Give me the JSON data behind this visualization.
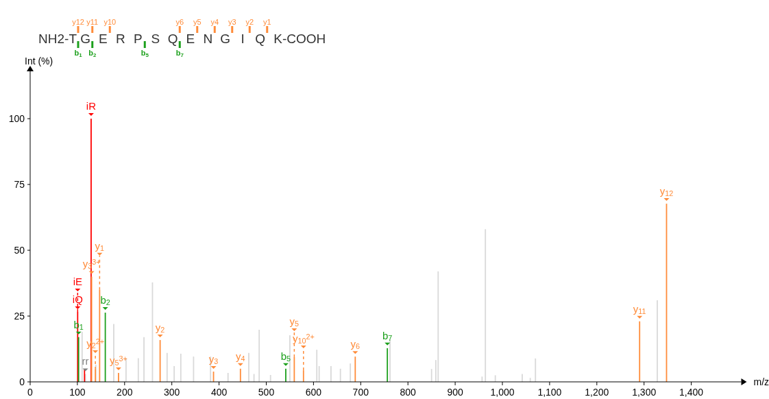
{
  "chart_data": [
    {
      "type": "other",
      "categories": [
        "NH2-T",
        "G",
        "E",
        "R",
        "P",
        "S",
        "Q",
        "E",
        "N",
        "G",
        "I",
        "Q",
        "K-COOH"
      ],
      "annotations": [
        {
          "text": "y12",
          "x": "NH2-T"
        },
        {
          "text": "y11",
          "x": "G"
        },
        {
          "text": "y10",
          "x": "E"
        },
        {
          "text": "y6",
          "x": "Q"
        },
        {
          "text": "y5",
          "x": "E"
        },
        {
          "text": "y4",
          "x": "N"
        },
        {
          "text": "y3",
          "x": "G"
        },
        {
          "text": "y2",
          "x": "I"
        },
        {
          "text": "y1",
          "x": "Q"
        },
        {
          "text": "b$_{1}$",
          "x": "NH2-T"
        },
        {
          "text": "b$_{2}$",
          "x": "G"
        },
        {
          "text": "b$_{5}$",
          "x": "P"
        },
        {
          "text": "b$_{7}$",
          "x": "Q"
        }
      ]
    },
    {
      "type": "bar",
      "xlabel": "m/z",
      "ylabel": "Int (%)",
      "xlim": [
        0,
        1500
      ],
      "ylim": [
        0,
        118
      ],
      "xticks": [
        0,
        100,
        200,
        300,
        400,
        500,
        600,
        700,
        800,
        900,
        {
          "value": 1000,
          "label": "1,000"
        },
        {
          "value": 1100,
          "label": "1,100"
        },
        {
          "value": 1200,
          "label": "1,200"
        },
        {
          "value": 1300,
          "label": "1,300"
        },
        {
          "value": 1400,
          "label": "1,400"
        }
      ],
      "yticks": [
        0,
        25,
        50,
        75,
        100
      ],
      "series": [
        {
          "color": "#d9d9d9",
          "x": [
            110,
            117,
            139,
            177,
            203,
            229,
            241,
            259,
            290,
            305,
            319,
            346,
            382,
            419,
            463,
            474,
            485,
            509,
            550,
            607,
            612,
            637,
            657,
            678,
            762,
            850,
            859,
            864,
            957,
            964,
            985,
            1042,
            1059,
            1070,
            1328
          ],
          "values": [
            19,
            3,
            6.5,
            22,
            9,
            9,
            17,
            37.8,
            11,
            6,
            10.7,
            9.6,
            9.6,
            3.4,
            11,
            3,
            19.8,
            2.6,
            17.7,
            12.2,
            6,
            6,
            5,
            7,
            16,
            4.9,
            8.3,
            42,
            2,
            58,
            2.5,
            3,
            1.5,
            8.9,
            31
          ]
        },
        {
          "color": "#ff0000",
          "x": [
            100.6,
            115.1,
            129.1
          ],
          "values": [
            26.6,
            4.7,
            100
          ]
        },
        {
          "color": "#ff8c3a",
          "x": [
            130.1,
            138.1,
            147.1,
            187.1,
            275.2,
            388.3,
            445.3,
            559.3,
            578.8,
            688.4,
            1290.6,
            1347.6
          ],
          "values": [
            40,
            4.7,
            35,
            3.4,
            15.9,
            3.9,
            5,
            9.4,
            4.4,
            9.6,
            23,
            67.7
          ]
        },
        {
          "color": "#1ca01c",
          "x": [
            102.6,
            159.1,
            541.3,
            756.4
          ],
          "values": [
            17,
            26.3,
            5,
            12.8
          ]
        }
      ],
      "annotations": [
        {
          "text": "iR",
          "x": 129.1,
          "y": 100
        },
        {
          "text": "iQ",
          "x": 100.6,
          "y": 26.6
        },
        {
          "text": "iE",
          "x": 100.6,
          "y": 26.6
        },
        {
          "text": "b$_{1}$",
          "x": 102.6,
          "y": 17
        },
        {
          "text": "rr",
          "x": 117,
          "y": 3
        },
        {
          "text": "y$_{2}$$^{2+}$",
          "x": 138.1,
          "y": 4.7
        },
        {
          "text": "y$_{3}$$^{3+}$",
          "x": 130.1,
          "y": 40
        },
        {
          "text": "b$_{2}$",
          "x": 159.1,
          "y": 26.3
        },
        {
          "text": "y$_{1}$",
          "x": 147.1,
          "y": 35
        },
        {
          "text": "y$_{5}$$^{3+}$",
          "x": 187.1,
          "y": 3.4
        },
        {
          "text": "y$_{2}$",
          "x": 275.2,
          "y": 15.9
        },
        {
          "text": "y$_{3}$",
          "x": 388.3,
          "y": 3.9
        },
        {
          "text": "y$_{4}$",
          "x": 445.3,
          "y": 5
        },
        {
          "text": "b$_{5}$",
          "x": 541.3,
          "y": 5
        },
        {
          "text": "y$_{10}$$^{2+}$",
          "x": 578.8,
          "y": 4.4
        },
        {
          "text": "y$_{5}$",
          "x": 559.3,
          "y": 9.4
        },
        {
          "text": "y$_{6}$",
          "x": 688.4,
          "y": 9.6
        },
        {
          "text": "b$_{7}$",
          "x": 756.4,
          "y": 12.8
        },
        {
          "text": "y$_{11}$",
          "x": 1290.6,
          "y": 23
        },
        {
          "text": "y$_{12}$",
          "x": 1347.6,
          "y": 67.7
        }
      ]
    }
  ]
}
